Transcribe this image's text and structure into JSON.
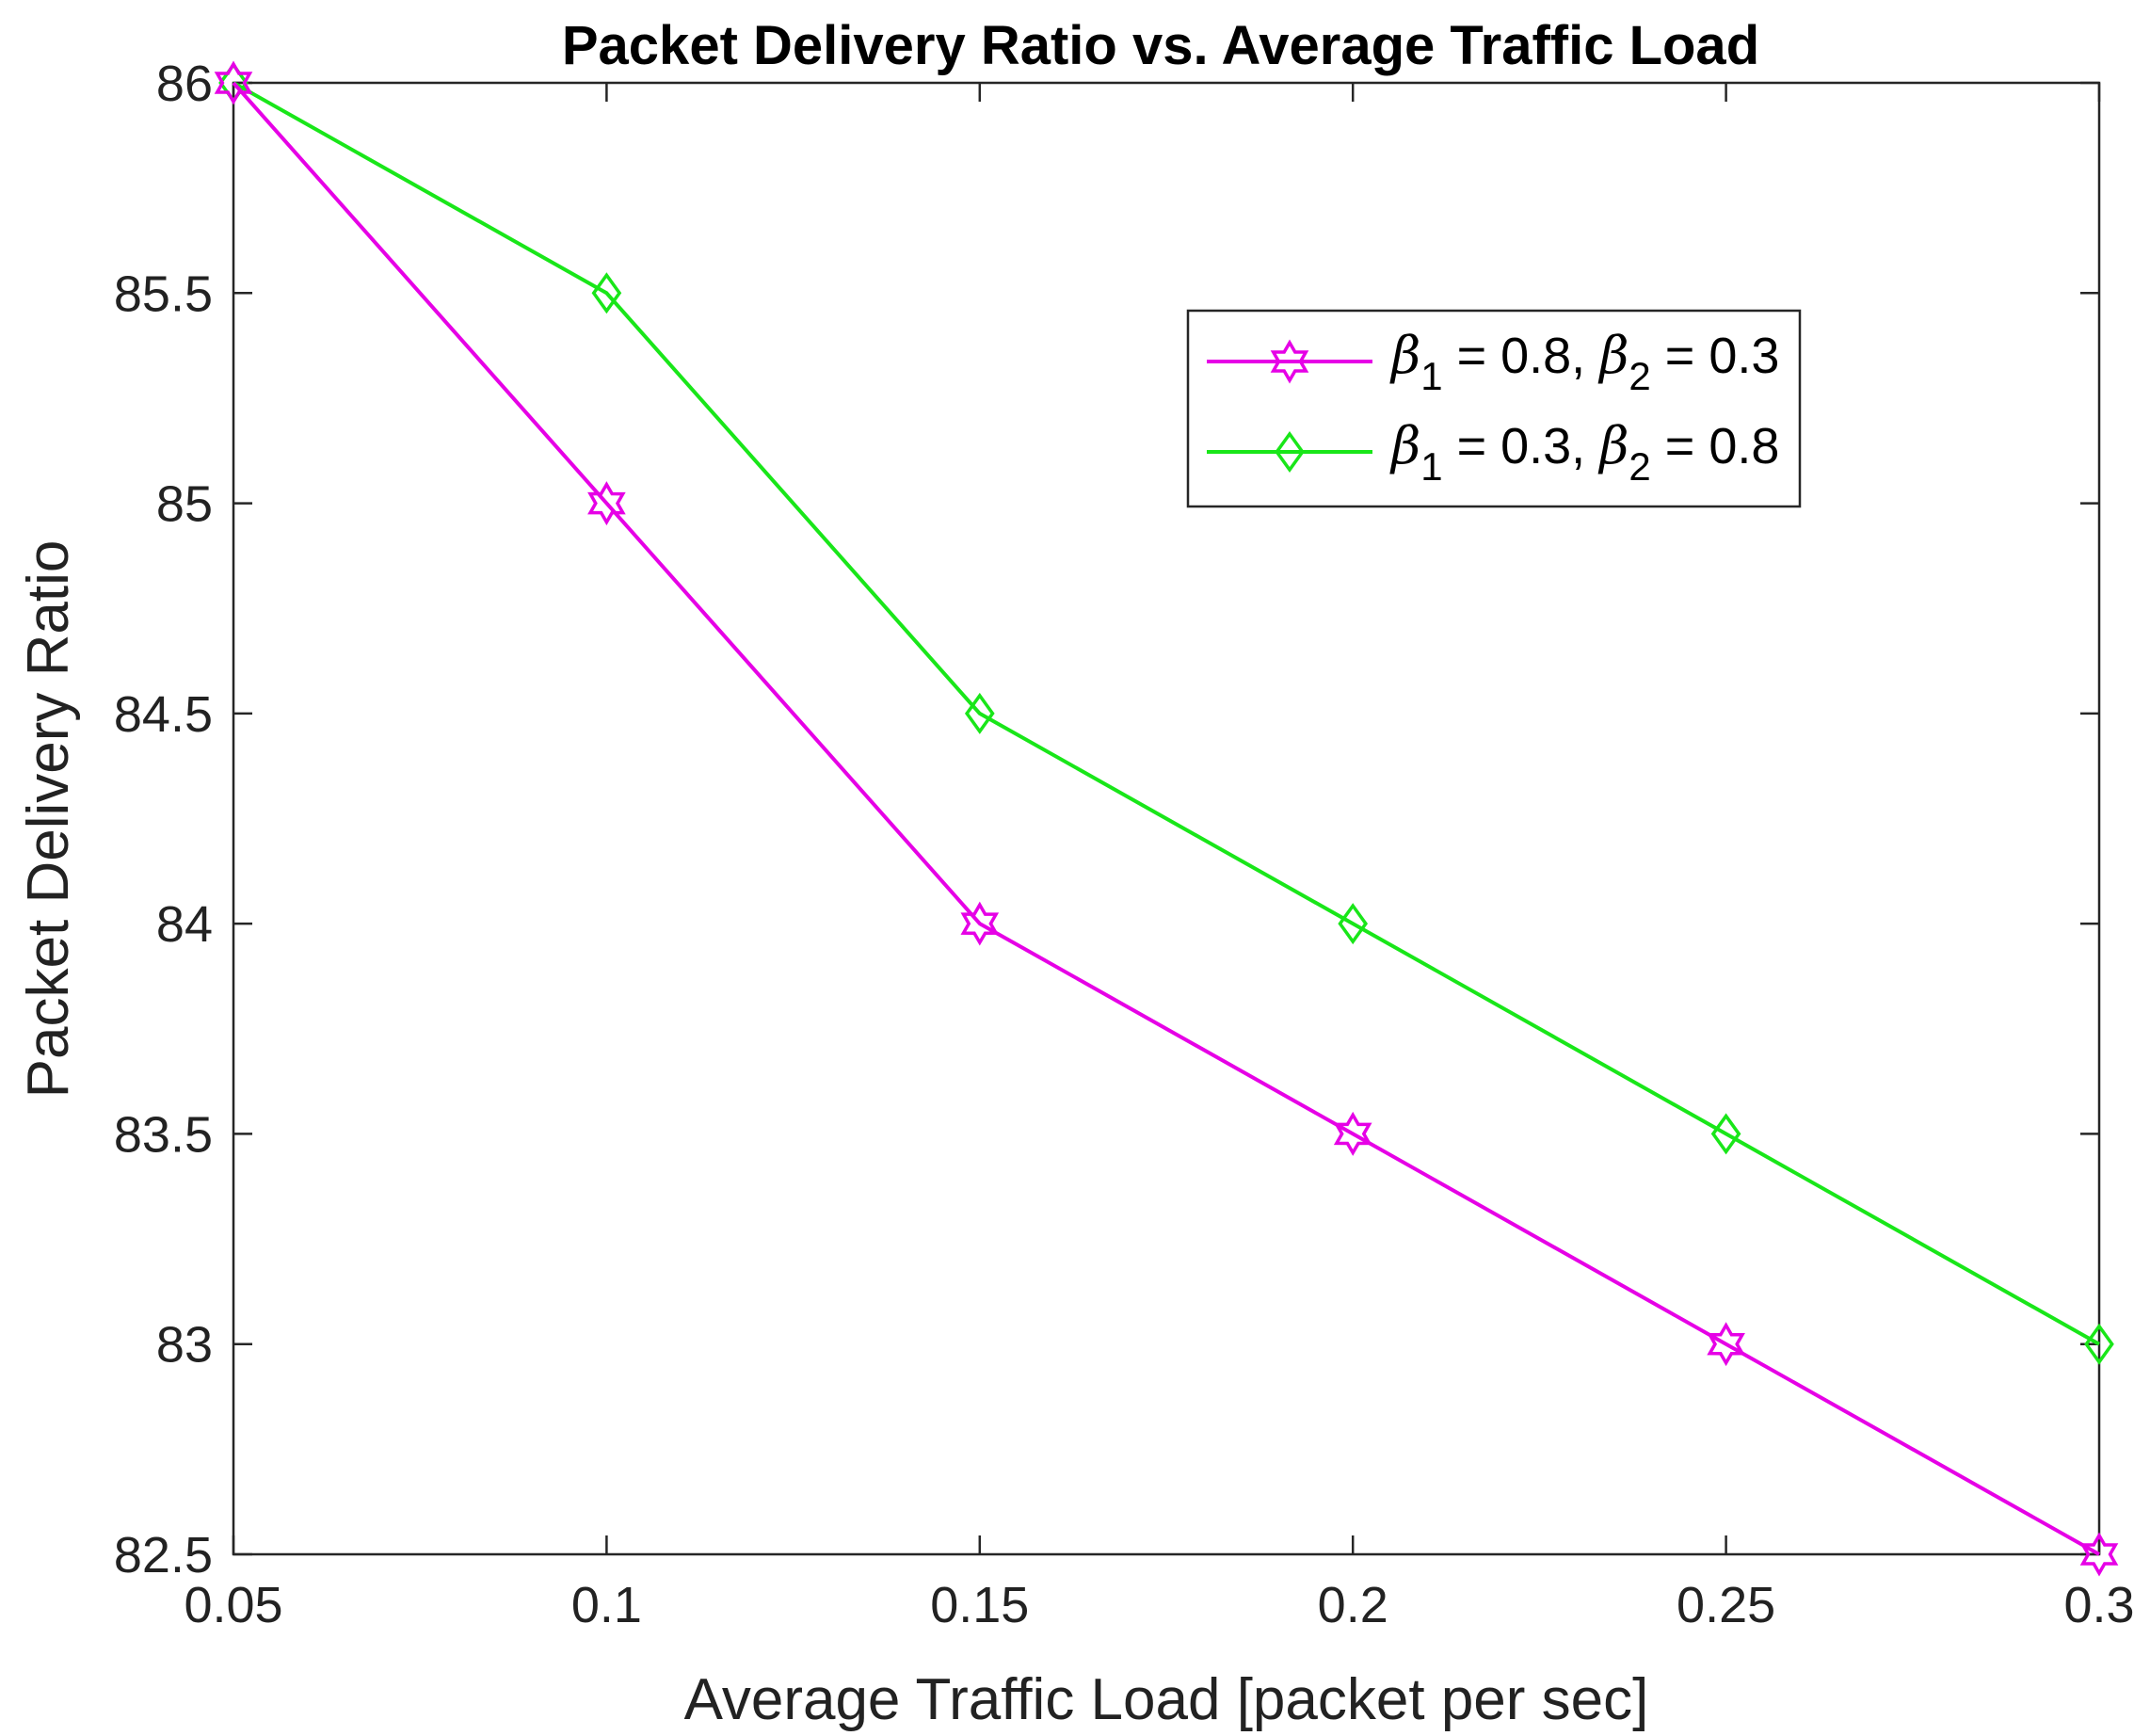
{
  "chart_data": {
    "type": "line",
    "title": "Packet Delivery Ratio vs. Average Traffic Load",
    "xlabel": "Average Traffic Load [packet per sec]",
    "ylabel": "Packet Delivery Ratio",
    "xlim": [
      0.05,
      0.3
    ],
    "ylim": [
      82.5,
      86
    ],
    "xticks": [
      0.05,
      0.1,
      0.15,
      0.2,
      0.25,
      0.3
    ],
    "xtick_labels": [
      "0.05",
      "0.1",
      "0.15",
      "0.2",
      "0.25",
      "0.3"
    ],
    "yticks": [
      82.5,
      83,
      83.5,
      84,
      84.5,
      85,
      85.5,
      86
    ],
    "ytick_labels": [
      "82.5",
      "83",
      "83.5",
      "84",
      "84.5",
      "85",
      "85.5",
      "86"
    ],
    "grid": false,
    "legend_position": "top-right",
    "x": [
      0.05,
      0.1,
      0.15,
      0.2,
      0.25,
      0.3
    ],
    "series": [
      {
        "name": "β1 = 0.8, β2 = 0.3",
        "legend": {
          "sym1": "β",
          "sub1": "1",
          "mid": " = 0.8, ",
          "sym2": "β",
          "sub2": "2",
          "end": " = 0.3"
        },
        "values": [
          86,
          85,
          84,
          83.5,
          83,
          82.5
        ],
        "color": "#e600e6",
        "marker": "hexagram"
      },
      {
        "name": "β1 = 0.3, β2 = 0.8",
        "legend": {
          "sym1": "β",
          "sub1": "1",
          "mid": " = 0.3, ",
          "sym2": "β",
          "sub2": "2",
          "end": " = 0.8"
        },
        "values": [
          86,
          85.5,
          84.5,
          84,
          83.5,
          83
        ],
        "color": "#19e619",
        "marker": "diamond"
      }
    ]
  }
}
